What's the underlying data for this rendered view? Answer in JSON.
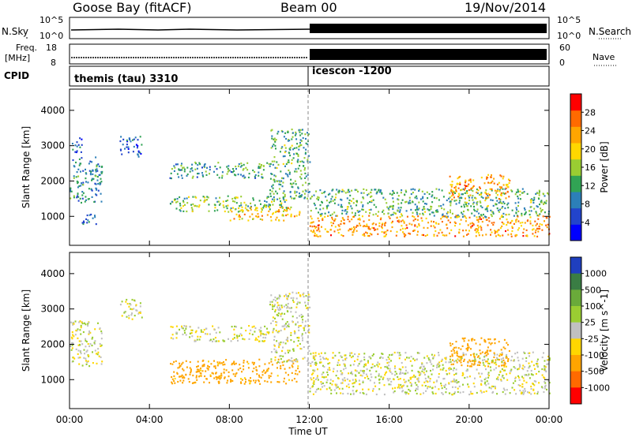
{
  "header": {
    "station": "Goose Bay (fitACF)",
    "beam": "Beam 00",
    "date": "19/Nov/2014"
  },
  "noise_panel": {
    "left_label": "N.Sky",
    "right_label": "N.Search",
    "ticks": [
      "10^5",
      "10^0"
    ]
  },
  "freq_panel": {
    "left_label_line1": "Freq.",
    "left_label_line2": "[MHz]",
    "left_ticks": [
      "18",
      "8"
    ],
    "right_label": "Nave",
    "right_ticks": [
      "60",
      "0"
    ]
  },
  "cpid_panel": {
    "label": "CPID",
    "modes": [
      {
        "name": "themis (tau) 3310",
        "start_hour": 0,
        "end_hour": 12
      },
      {
        "name": "icescon -1200",
        "start_hour": 12,
        "end_hour": 24
      }
    ]
  },
  "chart_data": [
    {
      "type": "heatmap",
      "title": "Power",
      "ylabel": "Slant Range [km]",
      "xlabel": "Time UT",
      "x_ticks": [
        "00:00",
        "04:00",
        "08:00",
        "12:00",
        "16:00",
        "20:00",
        "00:00"
      ],
      "y_ticks": [
        1000,
        2000,
        3000,
        4000
      ],
      "xlim_hours": [
        0,
        24
      ],
      "ylim_km": [
        180,
        4600
      ],
      "colorbar": {
        "label": "Power [dB]",
        "ticks": [
          "4",
          "8",
          "12",
          "16",
          "20",
          "24",
          "28"
        ],
        "range": [
          0,
          30
        ],
        "colors": [
          "#0000ff",
          "#2244cc",
          "#2c7fb8",
          "#31a354",
          "#9acd32",
          "#ffd700",
          "#ffa500",
          "#ff6a00",
          "#ff0000"
        ]
      },
      "features": [
        {
          "t_start": 0.0,
          "t_end": 1.6,
          "r_low": 1400,
          "r_high": 2700,
          "level": 9
        },
        {
          "t_start": 0.6,
          "t_end": 1.5,
          "r_low": 800,
          "r_high": 1100,
          "level": 8
        },
        {
          "t_start": 0.1,
          "t_end": 0.6,
          "r_low": 2800,
          "r_high": 3300,
          "level": 6
        },
        {
          "t_start": 2.5,
          "t_end": 3.6,
          "r_low": 2700,
          "r_high": 3300,
          "level": 7
        },
        {
          "t_start": 5.0,
          "t_end": 10.0,
          "r_low": 2100,
          "r_high": 2550,
          "level": 11
        },
        {
          "t_start": 5.0,
          "t_end": 11.0,
          "r_low": 1150,
          "r_high": 1600,
          "level": 14
        },
        {
          "t_start": 8.0,
          "t_end": 11.5,
          "r_low": 900,
          "r_high": 1300,
          "level": 20
        },
        {
          "t_start": 10.0,
          "t_end": 12.0,
          "r_low": 1500,
          "r_high": 3500,
          "level": 12
        },
        {
          "t_start": 12.0,
          "t_end": 24.0,
          "r_low": 1000,
          "r_high": 1800,
          "level": 12
        },
        {
          "t_start": 12.0,
          "t_end": 24.0,
          "r_low": 450,
          "r_high": 1050,
          "level": 22
        },
        {
          "t_start": 19.0,
          "t_end": 22.0,
          "r_low": 1500,
          "r_high": 2200,
          "level": 22
        }
      ]
    },
    {
      "type": "heatmap",
      "title": "Velocity",
      "ylabel": "Slant Range [km]",
      "xlabel": "Time UT",
      "x_ticks": [
        "00:00",
        "04:00",
        "08:00",
        "12:00",
        "16:00",
        "20:00",
        "00:00"
      ],
      "y_ticks": [
        1000,
        2000,
        3000,
        4000
      ],
      "xlim_hours": [
        0,
        24
      ],
      "ylim_km": [
        180,
        4600
      ],
      "colorbar": {
        "label": "Velocity [m s^-1]",
        "ticks": [
          "1000",
          "500",
          "100",
          "25",
          "-25",
          "-100",
          "-500",
          "-1000"
        ],
        "colors": [
          "#1f3fbf",
          "#3a7d44",
          "#6aaa3a",
          "#9acd32",
          "#c0c0c0",
          "#ffd700",
          "#ffa500",
          "#ff6a00",
          "#ff0000"
        ]
      },
      "features": [
        {
          "t_start": 0.0,
          "t_end": 1.6,
          "r_low": 1400,
          "r_high": 2700,
          "vel": 0
        },
        {
          "t_start": 2.5,
          "t_end": 3.6,
          "r_low": 2700,
          "r_high": 3300,
          "vel": 0
        },
        {
          "t_start": 5.0,
          "t_end": 10.0,
          "r_low": 2100,
          "r_high": 2550,
          "vel": 0
        },
        {
          "t_start": 5.0,
          "t_end": 11.5,
          "r_low": 900,
          "r_high": 1600,
          "vel": -150
        },
        {
          "t_start": 10.0,
          "t_end": 12.0,
          "r_low": 1500,
          "r_high": 3500,
          "vel": 0
        },
        {
          "t_start": 12.0,
          "t_end": 24.0,
          "r_low": 600,
          "r_high": 1800,
          "vel": 0
        },
        {
          "t_start": 19.0,
          "t_end": 22.0,
          "r_low": 1400,
          "r_high": 2200,
          "vel": -300
        }
      ]
    }
  ]
}
